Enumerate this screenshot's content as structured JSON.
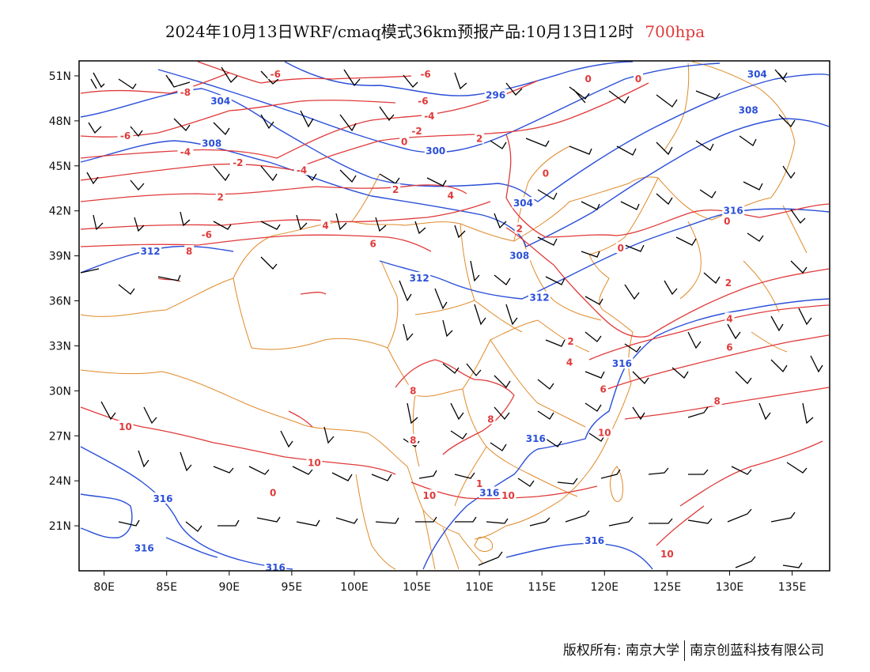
{
  "header": {
    "title": "2024年10月13日WRF/cmaq模式36km预报产品:10月13日12时",
    "level": "700hpa"
  },
  "footer": {
    "copyright": "版权所有: 南京大学",
    "company": "南京创蓝科技有限公司"
  },
  "axes": {
    "lat_labels": [
      "51N",
      "48N",
      "45N",
      "42N",
      "39N",
      "36N",
      "33N",
      "30N",
      "27N",
      "24N",
      "21N"
    ],
    "lon_labels": [
      "80E",
      "85E",
      "90E",
      "95E",
      "100E",
      "105E",
      "110E",
      "115E",
      "120E",
      "125E",
      "130E",
      "135E"
    ]
  },
  "colors": {
    "height": "#2b4fd8",
    "temperature": "#e03a3a",
    "border": "#e08a2a",
    "barb": "#000000"
  },
  "height_labels": [
    {
      "text": "304",
      "lon": 89.3,
      "lat": 49.3
    },
    {
      "text": "296",
      "lon": 111.3,
      "lat": 49.7
    },
    {
      "text": "304",
      "lon": 132.2,
      "lat": 51.1
    },
    {
      "text": "308",
      "lon": 88.6,
      "lat": 46.5
    },
    {
      "text": "300",
      "lon": 106.5,
      "lat": 46.0
    },
    {
      "text": "308",
      "lon": 131.5,
      "lat": 48.7
    },
    {
      "text": "304",
      "lon": 113.5,
      "lat": 42.5
    },
    {
      "text": "316",
      "lon": 130.3,
      "lat": 42.0
    },
    {
      "text": "312",
      "lon": 83.7,
      "lat": 39.3
    },
    {
      "text": "308",
      "lon": 113.2,
      "lat": 39.0
    },
    {
      "text": "312",
      "lon": 105.2,
      "lat": 37.5
    },
    {
      "text": "312",
      "lon": 114.8,
      "lat": 36.2
    },
    {
      "text": "316",
      "lon": 121.4,
      "lat": 31.8
    },
    {
      "text": "316",
      "lon": 114.5,
      "lat": 26.8
    },
    {
      "text": "316",
      "lon": 110.8,
      "lat": 23.2
    },
    {
      "text": "316",
      "lon": 84.7,
      "lat": 22.8
    },
    {
      "text": "316",
      "lon": 119.2,
      "lat": 20.0
    },
    {
      "text": "316",
      "lon": 83.2,
      "lat": 19.5
    },
    {
      "text": "316",
      "lon": 93.7,
      "lat": 18.2
    }
  ],
  "temperature_labels": [
    {
      "text": "-6",
      "lon": 93.7,
      "lat": 51.1
    },
    {
      "text": "-6",
      "lon": 105.7,
      "lat": 51.1
    },
    {
      "text": "-8",
      "lon": 86.5,
      "lat": 49.9
    },
    {
      "text": "-6",
      "lon": 105.5,
      "lat": 49.3
    },
    {
      "text": "-4",
      "lon": 106.0,
      "lat": 48.3
    },
    {
      "text": "0",
      "lon": 118.7,
      "lat": 50.8
    },
    {
      "text": "0",
      "lon": 122.7,
      "lat": 50.8
    },
    {
      "text": "-6",
      "lon": 81.7,
      "lat": 47.0
    },
    {
      "text": "-2",
      "lon": 105.0,
      "lat": 47.3
    },
    {
      "text": "0",
      "lon": 104.0,
      "lat": 46.6
    },
    {
      "text": "2",
      "lon": 110.0,
      "lat": 46.8
    },
    {
      "text": "-4",
      "lon": 86.5,
      "lat": 45.9
    },
    {
      "text": "-2",
      "lon": 90.7,
      "lat": 45.2
    },
    {
      "text": "-4",
      "lon": 95.8,
      "lat": 44.7
    },
    {
      "text": "0",
      "lon": 115.3,
      "lat": 44.5
    },
    {
      "text": "2",
      "lon": 103.3,
      "lat": 43.4
    },
    {
      "text": "2",
      "lon": 89.3,
      "lat": 42.9
    },
    {
      "text": "4",
      "lon": 107.7,
      "lat": 43.0
    },
    {
      "text": "2",
      "lon": 113.2,
      "lat": 40.8
    },
    {
      "text": "-6",
      "lon": 88.2,
      "lat": 40.4
    },
    {
      "text": "4",
      "lon": 97.7,
      "lat": 41.0
    },
    {
      "text": "0",
      "lon": 121.3,
      "lat": 39.5
    },
    {
      "text": "0",
      "lon": 129.8,
      "lat": 41.3
    },
    {
      "text": "6",
      "lon": 101.5,
      "lat": 39.8
    },
    {
      "text": "8",
      "lon": 86.8,
      "lat": 39.3
    },
    {
      "text": "2",
      "lon": 129.9,
      "lat": 37.2
    },
    {
      "text": "4",
      "lon": 130.0,
      "lat": 34.8
    },
    {
      "text": "2",
      "lon": 117.3,
      "lat": 33.3
    },
    {
      "text": "6",
      "lon": 130.0,
      "lat": 32.9
    },
    {
      "text": "4",
      "lon": 117.2,
      "lat": 31.9
    },
    {
      "text": "6",
      "lon": 119.9,
      "lat": 30.1
    },
    {
      "text": "8",
      "lon": 104.7,
      "lat": 30.0
    },
    {
      "text": "8",
      "lon": 129.0,
      "lat": 29.3
    },
    {
      "text": "8",
      "lon": 110.9,
      "lat": 28.1
    },
    {
      "text": "8",
      "lon": 104.7,
      "lat": 26.7
    },
    {
      "text": "10",
      "lon": 81.7,
      "lat": 27.6
    },
    {
      "text": "10",
      "lon": 120.0,
      "lat": 27.2
    },
    {
      "text": "10",
      "lon": 96.8,
      "lat": 25.2
    },
    {
      "text": "1",
      "lon": 110.0,
      "lat": 23.8
    },
    {
      "text": "10",
      "lon": 106.0,
      "lat": 23.0
    },
    {
      "text": "10",
      "lon": 112.3,
      "lat": 23.0
    },
    {
      "text": "0",
      "lon": 93.5,
      "lat": 23.2
    },
    {
      "text": "10",
      "lon": 125.0,
      "lat": 19.1
    }
  ]
}
